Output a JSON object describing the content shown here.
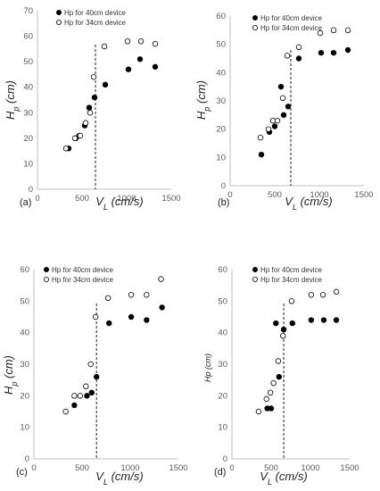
{
  "chart_data": [
    {
      "type": "scatter",
      "panel_label": "(a)",
      "xlabel": "V",
      "xlabel_sub": "L",
      "xlabel_unit": "(cm/s)",
      "ylabel": "H",
      "ylabel_sub": "p",
      "ylabel_unit": "(cm)",
      "xlim": [
        0,
        1500
      ],
      "ylim": [
        0,
        70
      ],
      "x_ticks": [
        "0",
        "500",
        "1000",
        "1500"
      ],
      "y_ticks": [
        "0",
        "10",
        "20",
        "30",
        "40",
        "50",
        "60",
        "70"
      ],
      "vline": 650,
      "legend_position": "top-left",
      "series": [
        {
          "name": "Hp for 40cm device",
          "marker": "filled",
          "points": [
            [
              350,
              16
            ],
            [
              430,
              20
            ],
            [
              470,
              21
            ],
            [
              530,
              25
            ],
            [
              580,
              32
            ],
            [
              640,
              36
            ],
            [
              760,
              41
            ],
            [
              1020,
              47
            ],
            [
              1150,
              51
            ],
            [
              1320,
              48
            ]
          ]
        },
        {
          "name": "Hp for 34cm device",
          "marker": "open",
          "points": [
            [
              320,
              16
            ],
            [
              420,
              20
            ],
            [
              480,
              21
            ],
            [
              540,
              26
            ],
            [
              590,
              30
            ],
            [
              630,
              44
            ],
            [
              750,
              56
            ],
            [
              1010,
              58
            ],
            [
              1160,
              58
            ],
            [
              1320,
              57
            ]
          ]
        }
      ]
    },
    {
      "type": "scatter",
      "panel_label": "(b)",
      "xlabel": "V",
      "xlabel_sub": "L",
      "xlabel_unit": "(cm/s)",
      "ylabel": "H",
      "ylabel_sub": "p",
      "ylabel_unit": "(cm)",
      "xlim": [
        0,
        1500
      ],
      "ylim": [
        0,
        60
      ],
      "x_ticks": [
        "0",
        "500",
        "1000",
        "1500"
      ],
      "y_ticks": [
        "0",
        "10",
        "20",
        "30",
        "40",
        "50",
        "60"
      ],
      "vline": 680,
      "legend_position": "top-left",
      "series": [
        {
          "name": "Hp for 40cm device",
          "marker": "filled",
          "points": [
            [
              350,
              11
            ],
            [
              440,
              19
            ],
            [
              500,
              21
            ],
            [
              570,
              35
            ],
            [
              600,
              25
            ],
            [
              650,
              28
            ],
            [
              770,
              45
            ],
            [
              1020,
              47
            ],
            [
              1160,
              47
            ],
            [
              1320,
              48
            ]
          ]
        },
        {
          "name": "Hp for 34cm device",
          "marker": "open",
          "points": [
            [
              340,
              17
            ],
            [
              430,
              20
            ],
            [
              480,
              23
            ],
            [
              530,
              23
            ],
            [
              590,
              31
            ],
            [
              640,
              46
            ],
            [
              770,
              49
            ],
            [
              1010,
              54
            ],
            [
              1160,
              55
            ],
            [
              1320,
              55
            ]
          ]
        }
      ]
    },
    {
      "type": "scatter",
      "panel_label": "(c)",
      "xlabel": "V",
      "xlabel_sub": "L",
      "xlabel_unit": "(cm/s)",
      "ylabel": "H",
      "ylabel_sub": "p",
      "ylabel_unit": "(cm)",
      "xlim": [
        0,
        1500
      ],
      "ylim": [
        0,
        60
      ],
      "x_ticks": [
        "0",
        "500",
        "1000",
        "1500"
      ],
      "y_ticks": [
        "0",
        "10",
        "20",
        "30",
        "40",
        "50",
        "60"
      ],
      "vline": 650,
      "legend_position": "top-left",
      "series": [
        {
          "name": "Hp for 40cm device",
          "marker": "filled",
          "points": [
            [
              420,
              17
            ],
            [
              550,
              20
            ],
            [
              600,
              21
            ],
            [
              650,
              26
            ],
            [
              780,
              43
            ],
            [
              1010,
              45
            ],
            [
              1170,
              44
            ],
            [
              1330,
              48
            ]
          ]
        },
        {
          "name": "Hp for 34cm device",
          "marker": "open",
          "points": [
            [
              330,
              15
            ],
            [
              420,
              20
            ],
            [
              480,
              20
            ],
            [
              540,
              23
            ],
            [
              590,
              30
            ],
            [
              640,
              45
            ],
            [
              770,
              51
            ],
            [
              1010,
              52
            ],
            [
              1170,
              52
            ],
            [
              1320,
              57
            ]
          ]
        }
      ]
    },
    {
      "type": "scatter",
      "panel_label": "(d)",
      "xlabel": "V",
      "xlabel_sub": "L",
      "xlabel_unit": "(cm/s)",
      "ylabel": "Hp",
      "ylabel_sub": "",
      "ylabel_unit": "(cm)",
      "xlim": [
        0,
        1500
      ],
      "ylim": [
        0,
        60
      ],
      "x_ticks": [
        "0",
        "500",
        "1000",
        "1500"
      ],
      "y_ticks": [
        "0",
        "10",
        "20",
        "30",
        "40",
        "50",
        "60"
      ],
      "vline": 660,
      "legend_position": "top-left",
      "series": [
        {
          "name": "Hp for 40cm device",
          "marker": "filled",
          "points": [
            [
              450,
              16
            ],
            [
              500,
              16
            ],
            [
              560,
              43
            ],
            [
              600,
              26
            ],
            [
              660,
              41
            ],
            [
              770,
              43
            ],
            [
              1010,
              44
            ],
            [
              1170,
              44
            ],
            [
              1330,
              44
            ]
          ]
        },
        {
          "name": "Hp for 34cm device",
          "marker": "open",
          "points": [
            [
              340,
              15
            ],
            [
              440,
              19
            ],
            [
              490,
              21
            ],
            [
              530,
              24
            ],
            [
              590,
              31
            ],
            [
              650,
              39
            ],
            [
              760,
              50
            ],
            [
              1010,
              52
            ],
            [
              1160,
              52
            ],
            [
              1330,
              53
            ]
          ]
        }
      ]
    }
  ]
}
